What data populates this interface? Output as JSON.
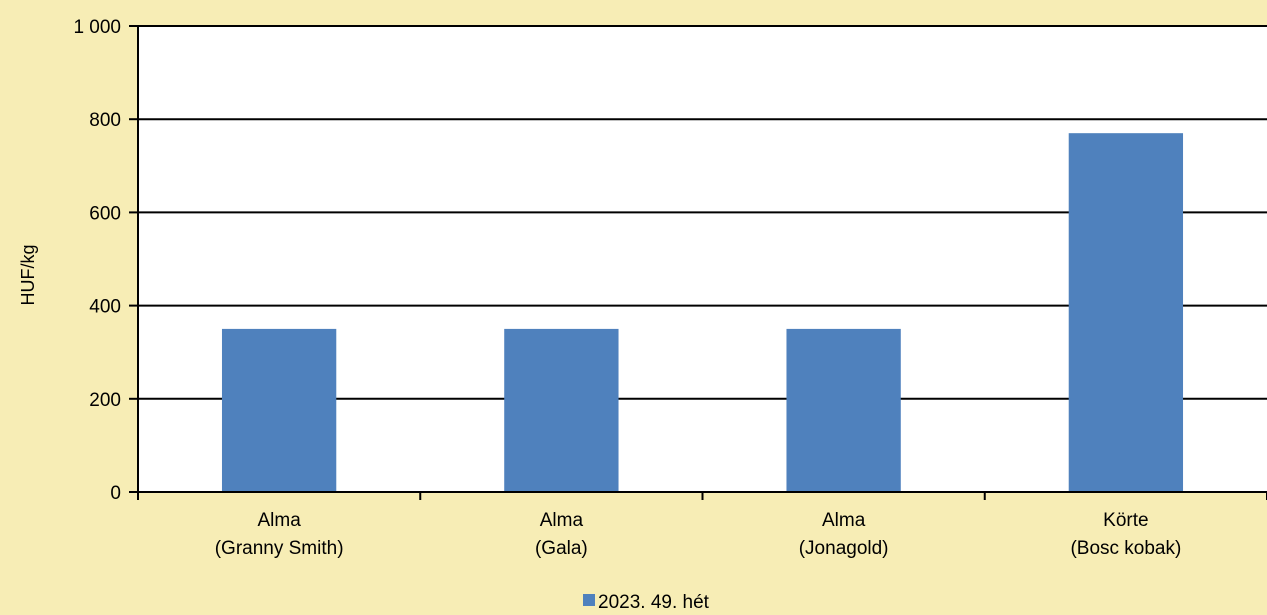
{
  "chart_data": {
    "type": "bar",
    "title": "",
    "xlabel": "",
    "ylabel": "HUF/kg",
    "ylim": [
      0,
      1000
    ],
    "yticks": [
      0,
      200,
      400,
      600,
      800,
      1000
    ],
    "ytick_labels": [
      "0",
      "200",
      "400",
      "600",
      "800",
      "1 000"
    ],
    "categories": [
      [
        "Alma",
        "(Granny Smith)"
      ],
      [
        "Alma",
        "(Gala)"
      ],
      [
        "Alma",
        "(Jonagold)"
      ],
      [
        "Körte",
        "(Bosc kobak)"
      ]
    ],
    "series": [
      {
        "name": "2023. 49. hét",
        "values": [
          350,
          350,
          350,
          770
        ],
        "color": "#4F81BD"
      }
    ],
    "grid": true,
    "legend_position": "bottom"
  },
  "colors": {
    "background": "#F7EDB5",
    "plot_area": "#FFFFFF",
    "bar": "#4F81BD",
    "grid": "#000000"
  }
}
